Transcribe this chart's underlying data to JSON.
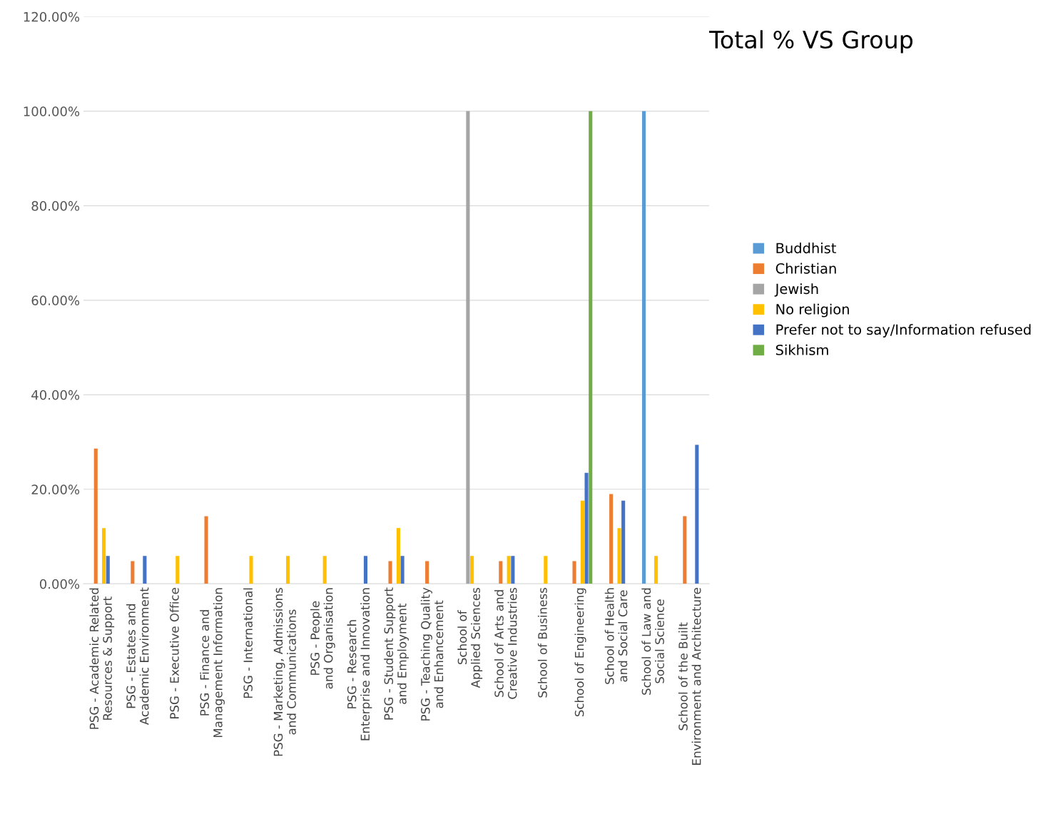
{
  "chart_data": {
    "type": "bar",
    "title": "Total % VS Group",
    "categories": [
      "PSG - Academic Related Resources & Support",
      "PSG - Estates and Academic Environment",
      "PSG - Executive Office",
      "PSG - Finance and Management Information",
      "PSG - International",
      "PSG - Marketing, Admissions and Communications",
      "PSG - People and Organisation",
      "PSG - Research Enterprise and Innovation",
      "PSG - Student Support and Employment",
      "PSG - Teaching Quality and Enhancement",
      "School of Applied Sciences",
      "School of Arts and Creative Industries",
      "School of Business",
      "School of Engineering",
      "School of Health and Social Care",
      "School of Law and Social Science",
      "School of the Built Environment and Architecture"
    ],
    "series": [
      {
        "name": "Buddhist",
        "color": "#5b9bd5",
        "values": [
          null,
          null,
          null,
          null,
          null,
          null,
          null,
          null,
          null,
          null,
          null,
          null,
          null,
          null,
          null,
          100,
          null
        ]
      },
      {
        "name": "Christian",
        "color": "#ed7d31",
        "values": [
          28.6,
          4.8,
          null,
          14.3,
          null,
          null,
          null,
          null,
          4.8,
          4.8,
          null,
          4.8,
          null,
          4.8,
          19.0,
          null,
          14.3
        ]
      },
      {
        "name": "Jewish",
        "color": "#a5a5a5",
        "values": [
          null,
          null,
          null,
          null,
          null,
          null,
          null,
          null,
          null,
          null,
          100,
          null,
          null,
          null,
          null,
          null,
          null
        ]
      },
      {
        "name": "No religion",
        "color": "#ffc000",
        "values": [
          11.8,
          null,
          5.9,
          null,
          5.9,
          5.9,
          5.9,
          null,
          11.8,
          null,
          5.9,
          5.9,
          5.9,
          17.6,
          11.8,
          5.9,
          null
        ]
      },
      {
        "name": "Prefer not to say/Information refused",
        "color": "#4472c4",
        "values": [
          5.9,
          5.9,
          null,
          null,
          null,
          null,
          null,
          5.9,
          5.9,
          null,
          null,
          5.9,
          null,
          23.5,
          17.6,
          null,
          29.4
        ]
      },
      {
        "name": "Sikhism",
        "color": "#70ad47",
        "values": [
          null,
          null,
          null,
          null,
          null,
          null,
          null,
          null,
          null,
          null,
          null,
          null,
          null,
          100,
          null,
          null,
          null
        ]
      }
    ],
    "ylim": [
      0,
      120
    ],
    "yticks": [
      {
        "value": 0,
        "label": "0.00%"
      },
      {
        "value": 20,
        "label": "20.00%"
      },
      {
        "value": 40,
        "label": "40.00%"
      },
      {
        "value": 60,
        "label": "60.00%"
      },
      {
        "value": 80,
        "label": "80.00%"
      },
      {
        "value": 100,
        "label": "100.00%"
      },
      {
        "value": 120,
        "label": "120.00%"
      }
    ],
    "grid": "y",
    "legend": "right"
  }
}
